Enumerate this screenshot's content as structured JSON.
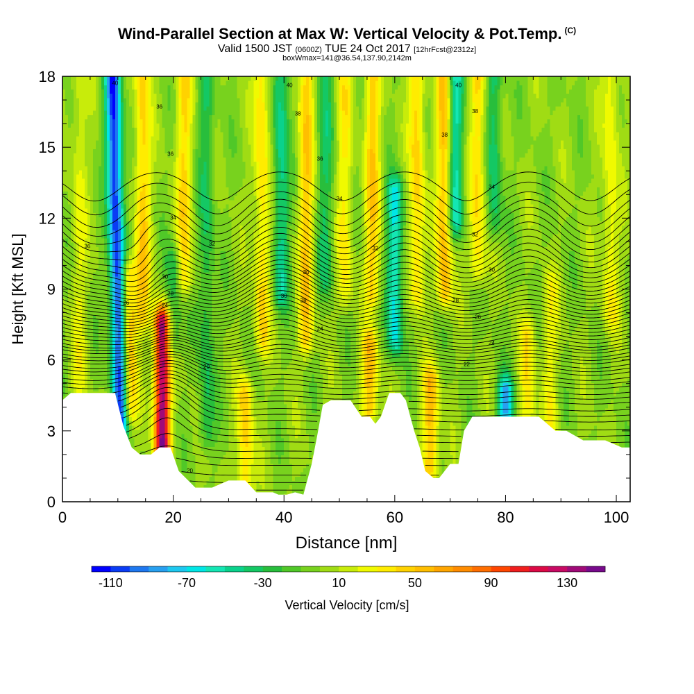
{
  "header": {
    "title": "Wind-Parallel Section at Max W: Vertical Velocity & Pot.Temp.",
    "title_tag": "(C)",
    "valid_prefix": "Valid 1500 JST",
    "valid_zulu": "(0600Z)",
    "valid_date": "TUE 24 Oct 2017",
    "forecast": "[12hrFcst@2312z]",
    "box_info": "boxWmax=141@36.54,137.90,2142m"
  },
  "chart_data": {
    "type": "heatmap",
    "title": "Wind-Parallel Section at Max W: Vertical Velocity & Pot.Temp.",
    "xlabel": "Distance [nm]",
    "ylabel": "Height [Kft MSL]",
    "xlim": [
      0,
      102.5
    ],
    "ylim": [
      0,
      18
    ],
    "x_ticks": [
      "0",
      "20",
      "40",
      "60",
      "80",
      "100"
    ],
    "y_ticks": [
      "0",
      "3",
      "6",
      "9",
      "12",
      "15",
      "18"
    ],
    "x_tick_values": [
      0,
      20,
      40,
      60,
      80,
      100
    ],
    "y_tick_values": [
      0,
      3,
      6,
      9,
      12,
      15,
      18
    ],
    "colorbar": {
      "label": "Vertical Velocity [cm/s]",
      "min": -120,
      "max": 150,
      "step": 10,
      "tick_labels": [
        "-110",
        "-70",
        "-30",
        "10",
        "50",
        "90",
        "130"
      ],
      "tick_values": [
        -110,
        -70,
        -30,
        10,
        50,
        90,
        130
      ],
      "colors": [
        "#0000ff",
        "#0a3cf5",
        "#1e78f0",
        "#28a0f0",
        "#1ec8f0",
        "#00e6e6",
        "#14e6b4",
        "#0ad28c",
        "#14c864",
        "#28be3c",
        "#50c828",
        "#78d21e",
        "#a0dc14",
        "#c8ec0a",
        "#f0fa00",
        "#ffec00",
        "#ffd200",
        "#ffbe00",
        "#ffa500",
        "#ff8c00",
        "#ff6e00",
        "#ff4600",
        "#f01e1e",
        "#dc0a46",
        "#c80a64",
        "#a00a78",
        "#780a8c"
      ]
    },
    "w_features": [
      {
        "x": 10.5,
        "z0": 3.5,
        "z1": 18,
        "w": -110,
        "lean": -0.1
      },
      {
        "x": 12.0,
        "z0": 4.0,
        "z1": 9.5,
        "w": 55,
        "lean": 0.0
      },
      {
        "x": 18.0,
        "z0": 2.2,
        "z1": 7.5,
        "w": 140,
        "lean": 0.0
      },
      {
        "x": 14.5,
        "z0": 8.0,
        "z1": 18,
        "w": 45,
        "lean": 0.0
      },
      {
        "x": 22.0,
        "z0": 9.5,
        "z1": 18,
        "w": 40,
        "lean": 0.0
      },
      {
        "x": 20.0,
        "z0": 7.0,
        "z1": 10.0,
        "w": -30,
        "lean": 0.0
      },
      {
        "x": 26.0,
        "z0": 3.0,
        "z1": 18,
        "w": -30,
        "lean": 0.0
      },
      {
        "x": 33.0,
        "z0": 0.5,
        "z1": 4.5,
        "w": 45,
        "lean": 0.0
      },
      {
        "x": 36.0,
        "z0": 7.0,
        "z1": 18,
        "w": 40,
        "lean": 0.0
      },
      {
        "x": 39.5,
        "z0": 9.0,
        "z1": 18,
        "w": -45,
        "lean": 0.0
      },
      {
        "x": 44.0,
        "z0": 7.0,
        "z1": 18,
        "w": 45,
        "lean": 0.0
      },
      {
        "x": 47.5,
        "z0": 9.5,
        "z1": 18,
        "w": -30,
        "lean": 0.0
      },
      {
        "x": 51.0,
        "z0": 9.0,
        "z1": 18,
        "w": 30,
        "lean": 0.0
      },
      {
        "x": 55.5,
        "z0": 4.0,
        "z1": 6.5,
        "w": 55,
        "lean": 0.0
      },
      {
        "x": 56.0,
        "z0": 9.0,
        "z1": 18,
        "w": 45,
        "lean": 0.0
      },
      {
        "x": 60.0,
        "z0": 7.0,
        "z1": 13.0,
        "w": -65,
        "lean": 0.0
      },
      {
        "x": 64.0,
        "z0": 9.0,
        "z1": 18,
        "w": 45,
        "lean": 0.0
      },
      {
        "x": 66.5,
        "z0": 1.5,
        "z1": 5.0,
        "w": 55,
        "lean": 0.0
      },
      {
        "x": 69.0,
        "z0": 9.0,
        "z1": 18,
        "w": 55,
        "lean": 0.0
      },
      {
        "x": 71.0,
        "z0": 12.0,
        "z1": 18,
        "w": -55,
        "lean": 0.0
      },
      {
        "x": 75.0,
        "z0": 10.0,
        "z1": 18,
        "w": 40,
        "lean": 0.0
      },
      {
        "x": 78.0,
        "z0": 12.0,
        "z1": 18,
        "w": -35,
        "lean": 0.0
      },
      {
        "x": 80.0,
        "z0": 3.8,
        "z1": 4.5,
        "w": -80,
        "lean": 0.0
      },
      {
        "x": 84.0,
        "z0": 4.0,
        "z1": 7.0,
        "w": 35,
        "lean": 0.0
      },
      {
        "x": 88.0,
        "z0": 3.0,
        "z1": 9.0,
        "w": 25,
        "lean": 0.0
      },
      {
        "x": 99.0,
        "z0": 8.0,
        "z1": 18,
        "w": 30,
        "lean": 0.0
      },
      {
        "x": 3.0,
        "z0": 5.0,
        "z1": 18,
        "w": 20,
        "lean": 0.0
      }
    ],
    "terrain": [
      [
        0,
        4.3
      ],
      [
        1.5,
        4.6
      ],
      [
        9.5,
        4.6
      ],
      [
        11,
        3.2
      ],
      [
        12.5,
        2.3
      ],
      [
        14,
        2.0
      ],
      [
        16,
        2.0
      ],
      [
        17.5,
        2.3
      ],
      [
        19.5,
        2.3
      ],
      [
        21,
        1.3
      ],
      [
        24,
        0.6
      ],
      [
        27,
        0.6
      ],
      [
        30,
        0.9
      ],
      [
        33,
        0.9
      ],
      [
        35,
        0.4
      ],
      [
        38,
        0.4
      ],
      [
        39,
        0.3
      ],
      [
        40.5,
        0.3
      ],
      [
        42,
        0.4
      ],
      [
        43.5,
        0.3
      ],
      [
        45,
        1.6
      ],
      [
        46,
        2.8
      ],
      [
        47,
        4.1
      ],
      [
        48.5,
        4.3
      ],
      [
        52,
        4.3
      ],
      [
        54,
        3.6
      ],
      [
        55.5,
        3.6
      ],
      [
        56.5,
        3.3
      ],
      [
        57.5,
        3.6
      ],
      [
        59,
        4.6
      ],
      [
        61,
        4.6
      ],
      [
        62,
        4.3
      ],
      [
        63.5,
        3.0
      ],
      [
        64.5,
        2.3
      ],
      [
        65.5,
        1.3
      ],
      [
        67,
        1.0
      ],
      [
        68,
        1.0
      ],
      [
        70,
        1.6
      ],
      [
        71.5,
        1.6
      ],
      [
        72.5,
        3.0
      ],
      [
        74,
        3.6
      ],
      [
        86,
        3.6
      ],
      [
        89,
        3.0
      ],
      [
        91,
        3.0
      ],
      [
        94,
        2.6
      ],
      [
        98,
        2.6
      ],
      [
        101,
        2.3
      ],
      [
        102.5,
        2.3
      ]
    ],
    "theta_contours": {
      "levels": [
        20,
        20.3,
        20.6,
        21,
        21.3,
        21.6,
        22,
        22.3,
        22.6,
        23,
        23.3,
        23.6,
        24,
        24.3,
        24.6,
        25,
        25.3,
        25.6,
        26,
        26.3,
        26.6,
        27,
        27.3,
        27.6,
        28,
        28.3,
        28.6,
        29,
        29.3,
        29.6,
        30,
        30.4,
        30.8,
        31.2,
        31.6,
        32,
        32.4,
        32.8,
        33.2,
        33.6,
        34,
        34.4,
        34.8,
        35.2,
        35.6,
        36,
        36.4,
        36.8,
        37.2,
        37.6,
        38,
        38.4,
        38.8,
        39.2,
        39.6,
        40,
        40.5,
        41
      ],
      "labels": [
        {
          "text": "40",
          "x": 9.5,
          "y": 17.7
        },
        {
          "text": "36",
          "x": 17.5,
          "y": 16.7
        },
        {
          "text": "36",
          "x": 19.5,
          "y": 14.7
        },
        {
          "text": "34",
          "x": 20.0,
          "y": 12.0
        },
        {
          "text": "36",
          "x": 4.5,
          "y": 10.8
        },
        {
          "text": "32",
          "x": 27.0,
          "y": 10.9
        },
        {
          "text": "30",
          "x": 18.5,
          "y": 9.5
        },
        {
          "text": "28",
          "x": 19.5,
          "y": 8.8
        },
        {
          "text": "24",
          "x": 18.5,
          "y": 8.3
        },
        {
          "text": "26",
          "x": 11.5,
          "y": 8.4
        },
        {
          "text": "20",
          "x": 26.0,
          "y": 5.7
        },
        {
          "text": "20",
          "x": 23.0,
          "y": 1.3
        },
        {
          "text": "40",
          "x": 41.0,
          "y": 17.6
        },
        {
          "text": "38",
          "x": 42.5,
          "y": 16.4
        },
        {
          "text": "36",
          "x": 46.5,
          "y": 14.5
        },
        {
          "text": "34",
          "x": 50.0,
          "y": 12.8
        },
        {
          "text": "30",
          "x": 44.0,
          "y": 9.7
        },
        {
          "text": "30",
          "x": 40.0,
          "y": 8.7
        },
        {
          "text": "28",
          "x": 43.5,
          "y": 8.5
        },
        {
          "text": "24",
          "x": 46.5,
          "y": 7.3
        },
        {
          "text": "32",
          "x": 56.5,
          "y": 10.7
        },
        {
          "text": "40",
          "x": 71.5,
          "y": 17.6
        },
        {
          "text": "38",
          "x": 74.5,
          "y": 16.5
        },
        {
          "text": "38",
          "x": 69.0,
          "y": 15.5
        },
        {
          "text": "34",
          "x": 77.5,
          "y": 13.3
        },
        {
          "text": "32",
          "x": 74.5,
          "y": 11.3
        },
        {
          "text": "30",
          "x": 77.5,
          "y": 9.8
        },
        {
          "text": "28",
          "x": 71.0,
          "y": 8.5
        },
        {
          "text": "26",
          "x": 75.0,
          "y": 7.8
        },
        {
          "text": "24",
          "x": 77.5,
          "y": 6.7
        },
        {
          "text": "22",
          "x": 73.0,
          "y": 5.8
        }
      ]
    }
  }
}
